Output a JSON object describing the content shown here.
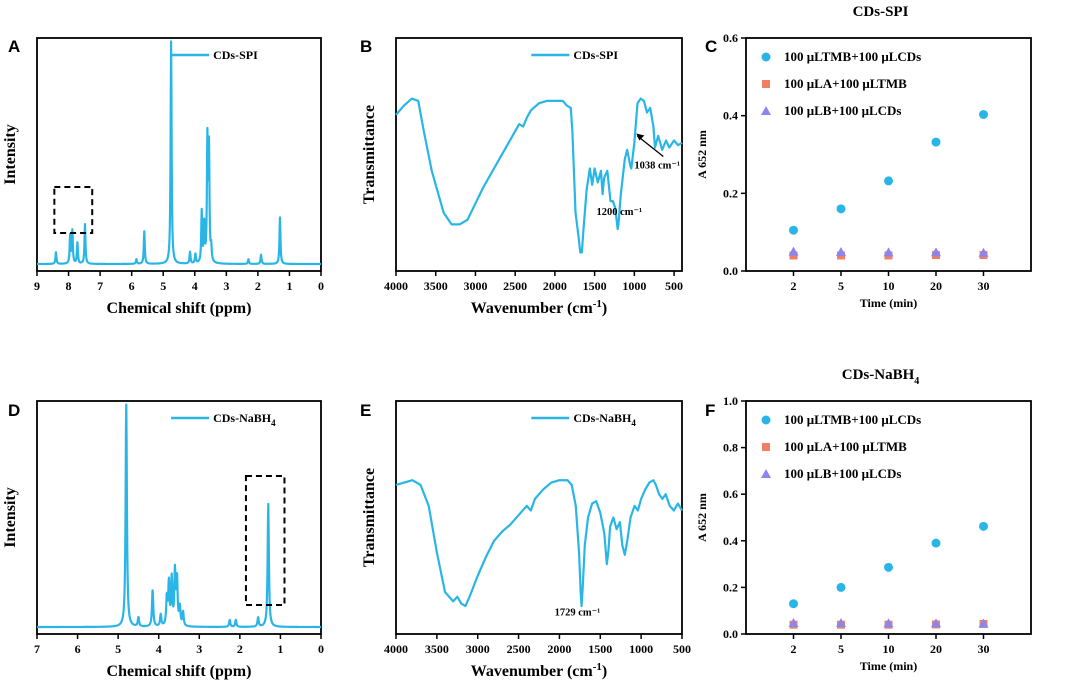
{
  "colors": {
    "trace": "#29b6e6",
    "series1": "#29b6e6",
    "series2": "#f07f66",
    "series3": "#8a86ee"
  },
  "chart_data": [
    {
      "panel": "A",
      "type": "line",
      "legend": "CDs-SPI",
      "xlabel": "Chemical shift (ppm)",
      "ylabel": "Intensity",
      "xlim": [
        9,
        0
      ],
      "xticks": [
        "9",
        "8",
        "7",
        "6",
        "5",
        "4",
        "3",
        "2",
        "1",
        "0"
      ],
      "ylim": [
        0,
        1
      ],
      "baseline": 0.03,
      "peaks": [
        {
          "x": 8.4,
          "h": 0.05
        },
        {
          "x": 7.95,
          "h": 0.12
        },
        {
          "x": 7.88,
          "h": 0.14
        },
        {
          "x": 7.72,
          "h": 0.09
        },
        {
          "x": 7.48,
          "h": 0.17
        },
        {
          "x": 5.85,
          "h": 0.02
        },
        {
          "x": 5.6,
          "h": 0.14
        },
        {
          "x": 4.75,
          "h": 0.98
        },
        {
          "x": 4.15,
          "h": 0.05
        },
        {
          "x": 3.98,
          "h": 0.04
        },
        {
          "x": 3.78,
          "h": 0.22
        },
        {
          "x": 3.7,
          "h": 0.16
        },
        {
          "x": 3.6,
          "h": 0.52
        },
        {
          "x": 3.55,
          "h": 0.48
        },
        {
          "x": 3.48,
          "h": 0.06
        },
        {
          "x": 2.3,
          "h": 0.02
        },
        {
          "x": 1.9,
          "h": 0.04
        },
        {
          "x": 1.3,
          "h": 0.2
        }
      ],
      "highlight": {
        "from": 8.45,
        "to": 7.25
      }
    },
    {
      "panel": "B",
      "type": "line",
      "legend": "CDs-SPI",
      "xlabel": "Wavenumber (cm⁻¹)",
      "ylabel": "Transmittance",
      "xlim": [
        4000,
        400
      ],
      "xticks": [
        "4000",
        "3500",
        "3000",
        "2500",
        "2000",
        "1500",
        "1000",
        "500"
      ],
      "ylim": [
        0,
        1
      ],
      "points": [
        [
          4000,
          0.67
        ],
        [
          3900,
          0.71
        ],
        [
          3800,
          0.74
        ],
        [
          3720,
          0.73
        ],
        [
          3650,
          0.6
        ],
        [
          3550,
          0.43
        ],
        [
          3400,
          0.25
        ],
        [
          3300,
          0.2
        ],
        [
          3200,
          0.2
        ],
        [
          3100,
          0.22
        ],
        [
          3000,
          0.29
        ],
        [
          2900,
          0.36
        ],
        [
          2800,
          0.42
        ],
        [
          2700,
          0.48
        ],
        [
          2600,
          0.54
        ],
        [
          2500,
          0.6
        ],
        [
          2450,
          0.63
        ],
        [
          2400,
          0.62
        ],
        [
          2350,
          0.66
        ],
        [
          2300,
          0.69
        ],
        [
          2200,
          0.72
        ],
        [
          2100,
          0.73
        ],
        [
          2000,
          0.73
        ],
        [
          1900,
          0.73
        ],
        [
          1850,
          0.71
        ],
        [
          1800,
          0.7
        ],
        [
          1780,
          0.6
        ],
        [
          1740,
          0.25
        ],
        [
          1700,
          0.14
        ],
        [
          1680,
          0.08
        ],
        [
          1660,
          0.08
        ],
        [
          1640,
          0.18
        ],
        [
          1600,
          0.35
        ],
        [
          1560,
          0.44
        ],
        [
          1530,
          0.37
        ],
        [
          1500,
          0.44
        ],
        [
          1460,
          0.38
        ],
        [
          1420,
          0.43
        ],
        [
          1400,
          0.33
        ],
        [
          1380,
          0.4
        ],
        [
          1340,
          0.43
        ],
        [
          1300,
          0.3
        ],
        [
          1270,
          0.3
        ],
        [
          1240,
          0.27
        ],
        [
          1210,
          0.18
        ],
        [
          1200,
          0.2
        ],
        [
          1170,
          0.33
        ],
        [
          1120,
          0.48
        ],
        [
          1090,
          0.52
        ],
        [
          1050,
          0.45
        ],
        [
          1038,
          0.44
        ],
        [
          1000,
          0.55
        ],
        [
          960,
          0.72
        ],
        [
          920,
          0.74
        ],
        [
          880,
          0.73
        ],
        [
          840,
          0.68
        ],
        [
          800,
          0.7
        ],
        [
          760,
          0.62
        ],
        [
          740,
          0.53
        ],
        [
          700,
          0.58
        ],
        [
          650,
          0.52
        ],
        [
          600,
          0.56
        ],
        [
          560,
          0.53
        ],
        [
          500,
          0.56
        ],
        [
          450,
          0.54
        ],
        [
          400,
          0.55
        ]
      ],
      "annotations": [
        {
          "text": "1038 cm⁻¹",
          "x": 1038
        },
        {
          "text": "1200 cm⁻¹",
          "x": 1200
        }
      ]
    },
    {
      "panel": "C",
      "type": "scatter",
      "title": "CDs-SPI",
      "xlabel": "Time (min)",
      "ylabel": "A 652 nm",
      "categories": [
        "2",
        "5",
        "10",
        "20",
        "30"
      ],
      "ylim": [
        0,
        0.6
      ],
      "yticks": [
        "0.0",
        "0.2",
        "0.4",
        "0.6"
      ],
      "series": [
        {
          "name": "100 μLTMB+100 μLCDs",
          "marker": "circle",
          "values": [
            0.105,
            0.16,
            0.232,
            0.332,
            0.403
          ]
        },
        {
          "name": "100 μLA+100 μLTMB",
          "marker": "square",
          "values": [
            0.04,
            0.04,
            0.04,
            0.041,
            0.041
          ]
        },
        {
          "name": "100 μLB+100 μLCDs",
          "marker": "triangle",
          "values": [
            0.05,
            0.049,
            0.048,
            0.048,
            0.047
          ]
        }
      ]
    },
    {
      "panel": "D",
      "type": "line",
      "legend": "CDs-NaBH",
      "legend_sub": "4",
      "xlabel": "Chemical shift (ppm)",
      "ylabel": "Intensity",
      "xlim": [
        7,
        0
      ],
      "xticks": [
        "7",
        "6",
        "5",
        "4",
        "3",
        "2",
        "1",
        "0"
      ],
      "ylim": [
        0,
        1
      ],
      "baseline": 0.03,
      "peaks": [
        {
          "x": 4.8,
          "h": 0.99
        },
        {
          "x": 4.5,
          "h": 0.04
        },
        {
          "x": 4.15,
          "h": 0.16
        },
        {
          "x": 3.95,
          "h": 0.05
        },
        {
          "x": 3.8,
          "h": 0.12
        },
        {
          "x": 3.75,
          "h": 0.18
        },
        {
          "x": 3.68,
          "h": 0.2
        },
        {
          "x": 3.6,
          "h": 0.23
        },
        {
          "x": 3.55,
          "h": 0.2
        },
        {
          "x": 3.48,
          "h": 0.08
        },
        {
          "x": 3.4,
          "h": 0.06
        },
        {
          "x": 2.25,
          "h": 0.03
        },
        {
          "x": 2.1,
          "h": 0.03
        },
        {
          "x": 1.55,
          "h": 0.04
        },
        {
          "x": 1.3,
          "h": 0.53
        }
      ],
      "highlight": {
        "from": 1.85,
        "to": 0.9
      }
    },
    {
      "panel": "E",
      "type": "line",
      "legend": "CDs-NaBH",
      "legend_sub": "4",
      "xlabel": "Wavenumber (cm⁻¹)",
      "ylabel": "Transmittance",
      "xlim": [
        4000,
        500
      ],
      "xticks": [
        "4000",
        "3500",
        "3000",
        "2500",
        "2000",
        "1500",
        "1000",
        "500"
      ],
      "ylim": [
        0,
        1
      ],
      "points": [
        [
          4000,
          0.64
        ],
        [
          3900,
          0.65
        ],
        [
          3800,
          0.66
        ],
        [
          3700,
          0.64
        ],
        [
          3600,
          0.55
        ],
        [
          3500,
          0.35
        ],
        [
          3400,
          0.18
        ],
        [
          3300,
          0.14
        ],
        [
          3250,
          0.16
        ],
        [
          3200,
          0.13
        ],
        [
          3150,
          0.12
        ],
        [
          3100,
          0.16
        ],
        [
          3000,
          0.25
        ],
        [
          2900,
          0.33
        ],
        [
          2800,
          0.4
        ],
        [
          2700,
          0.44
        ],
        [
          2600,
          0.47
        ],
        [
          2500,
          0.51
        ],
        [
          2400,
          0.55
        ],
        [
          2350,
          0.53
        ],
        [
          2300,
          0.58
        ],
        [
          2200,
          0.62
        ],
        [
          2100,
          0.65
        ],
        [
          2000,
          0.66
        ],
        [
          1900,
          0.66
        ],
        [
          1850,
          0.64
        ],
        [
          1800,
          0.55
        ],
        [
          1760,
          0.35
        ],
        [
          1740,
          0.18
        ],
        [
          1729,
          0.12
        ],
        [
          1715,
          0.2
        ],
        [
          1690,
          0.38
        ],
        [
          1650,
          0.5
        ],
        [
          1600,
          0.56
        ],
        [
          1550,
          0.57
        ],
        [
          1500,
          0.52
        ],
        [
          1450,
          0.43
        ],
        [
          1420,
          0.3
        ],
        [
          1400,
          0.36
        ],
        [
          1380,
          0.46
        ],
        [
          1340,
          0.5
        ],
        [
          1300,
          0.45
        ],
        [
          1260,
          0.48
        ],
        [
          1230,
          0.38
        ],
        [
          1200,
          0.34
        ],
        [
          1170,
          0.4
        ],
        [
          1130,
          0.5
        ],
        [
          1080,
          0.55
        ],
        [
          1040,
          0.53
        ],
        [
          1000,
          0.58
        ],
        [
          950,
          0.62
        ],
        [
          900,
          0.65
        ],
        [
          850,
          0.66
        ],
        [
          820,
          0.64
        ],
        [
          780,
          0.6
        ],
        [
          740,
          0.58
        ],
        [
          700,
          0.6
        ],
        [
          650,
          0.55
        ],
        [
          600,
          0.53
        ],
        [
          550,
          0.56
        ],
        [
          500,
          0.53
        ]
      ],
      "annotations": [
        {
          "text": "1729 cm⁻¹",
          "x": 1729
        }
      ]
    },
    {
      "panel": "F",
      "type": "scatter",
      "title": "CDs-NaBH",
      "title_sub": "4",
      "xlabel": "Time (min)",
      "ylabel": "A 652 nm",
      "categories": [
        "2",
        "5",
        "10",
        "20",
        "30"
      ],
      "ylim": [
        0,
        1.0
      ],
      "yticks": [
        "0.0",
        "0.2",
        "0.4",
        "0.6",
        "0.8",
        "1.0"
      ],
      "series": [
        {
          "name": "100 μLTMB+100 μLCDs",
          "marker": "circle",
          "values": [
            0.13,
            0.2,
            0.286,
            0.39,
            0.462
          ]
        },
        {
          "name": "100 μLA+100 μLTMB",
          "marker": "square",
          "values": [
            0.04,
            0.04,
            0.04,
            0.041,
            0.043
          ]
        },
        {
          "name": "100 μLB+100 μLCDs",
          "marker": "triangle",
          "values": [
            0.047,
            0.047,
            0.046,
            0.046,
            0.045
          ]
        }
      ]
    }
  ]
}
